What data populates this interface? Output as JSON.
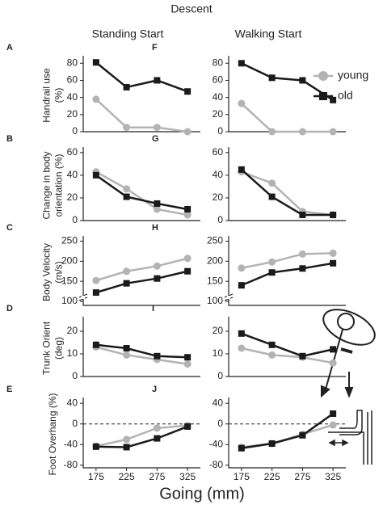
{
  "title": "Descent",
  "x_label": "Going (mm)",
  "columns": [
    "Standing Start",
    "Walking Start"
  ],
  "chart_data": [
    {
      "type": "line",
      "panel": "A",
      "ylabel": [
        "Handrail use",
        "(%)"
      ],
      "x": [
        175,
        225,
        275,
        325
      ],
      "xlim": [
        154,
        346
      ],
      "ylim": [
        0,
        85
      ],
      "yticks": [
        0,
        20,
        40,
        60,
        80
      ],
      "series": [
        {
          "color": "#b3b3b3",
          "marker": "circle",
          "values": [
            38,
            5,
            5,
            0
          ]
        },
        {
          "color": "#1a1a1a",
          "marker": "square",
          "values": [
            81,
            52,
            60,
            47
          ]
        }
      ]
    },
    {
      "type": "line",
      "panel": "B",
      "ylabel": [
        "Change in body",
        "orientation (%)"
      ],
      "x": [
        175,
        225,
        275,
        325
      ],
      "xlim": [
        154,
        346
      ],
      "ylim": [
        0,
        62
      ],
      "yticks": [
        0,
        20,
        40,
        60
      ],
      "series": [
        {
          "color": "#b3b3b3",
          "marker": "circle",
          "values": [
            43,
            28,
            10,
            5
          ]
        },
        {
          "color": "#1a1a1a",
          "marker": "square",
          "values": [
            40,
            21,
            15,
            10
          ]
        }
      ]
    },
    {
      "type": "line",
      "panel": "C",
      "ylabel": [
        "Body Velocity",
        "(m/s)"
      ],
      "x": [
        175,
        225,
        275,
        325
      ],
      "xlim": [
        154,
        346
      ],
      "ylim": [
        90,
        255
      ],
      "yticks": [
        100,
        150,
        200,
        250
      ],
      "axis_break": true,
      "series": [
        {
          "color": "#b3b3b3",
          "marker": "circle",
          "values": [
            152,
            175,
            188,
            207
          ]
        },
        {
          "color": "#1a1a1a",
          "marker": "square",
          "values": [
            122,
            145,
            157,
            175
          ]
        }
      ]
    },
    {
      "type": "line",
      "panel": "D",
      "ylabel": [
        "Trunk Orient",
        "(deg)"
      ],
      "x": [
        175,
        225,
        275,
        325
      ],
      "xlim": [
        154,
        346
      ],
      "ylim": [
        0,
        25
      ],
      "yticks": [
        0,
        10,
        20
      ],
      "series": [
        {
          "color": "#b3b3b3",
          "marker": "circle",
          "values": [
            13,
            9.5,
            7.5,
            5.5
          ]
        },
        {
          "color": "#1a1a1a",
          "marker": "square",
          "values": [
            14,
            12.5,
            9,
            8.5
          ]
        }
      ]
    },
    {
      "type": "line",
      "panel": "E",
      "ylabel": [
        "Foot Overhang (%)"
      ],
      "x": [
        175,
        225,
        275,
        325
      ],
      "xlim": [
        154,
        346
      ],
      "ylim": [
        -85,
        45
      ],
      "yticks": [
        -80,
        -40,
        0,
        40
      ],
      "xticks": [
        175,
        225,
        275,
        325
      ],
      "zero_line": true,
      "series": [
        {
          "color": "#b3b3b3",
          "marker": "circle",
          "values": [
            -43,
            -30,
            -8,
            -3
          ]
        },
        {
          "color": "#1a1a1a",
          "marker": "square",
          "values": [
            -44,
            -45,
            -28,
            -5
          ]
        }
      ]
    },
    {
      "type": "line",
      "panel": "F",
      "x": [
        175,
        225,
        275,
        325
      ],
      "xlim": [
        154,
        346
      ],
      "ylim": [
        0,
        85
      ],
      "yticks": [
        0,
        20,
        40,
        60,
        80
      ],
      "legend": "right",
      "series": [
        {
          "name": "young",
          "color": "#b3b3b3",
          "marker": "circle",
          "values": [
            33,
            0,
            0,
            0
          ]
        },
        {
          "name": "old",
          "color": "#1a1a1a",
          "marker": "square",
          "values": [
            80,
            63,
            60,
            37
          ]
        }
      ]
    },
    {
      "type": "line",
      "panel": "G",
      "x": [
        175,
        225,
        275,
        325
      ],
      "xlim": [
        154,
        346
      ],
      "ylim": [
        0,
        62
      ],
      "yticks": [
        0,
        20,
        40,
        60
      ],
      "series": [
        {
          "color": "#b3b3b3",
          "marker": "circle",
          "values": [
            43,
            33,
            8,
            5
          ]
        },
        {
          "color": "#1a1a1a",
          "marker": "square",
          "values": [
            45,
            21,
            5,
            5
          ]
        }
      ]
    },
    {
      "type": "line",
      "panel": "H",
      "x": [
        175,
        225,
        275,
        325
      ],
      "xlim": [
        154,
        346
      ],
      "ylim": [
        90,
        255
      ],
      "yticks": [
        100,
        150,
        200,
        250
      ],
      "axis_break": true,
      "series": [
        {
          "color": "#b3b3b3",
          "marker": "circle",
          "values": [
            183,
            198,
            218,
            220
          ]
        },
        {
          "color": "#1a1a1a",
          "marker": "square",
          "values": [
            140,
            172,
            182,
            195
          ]
        }
      ]
    },
    {
      "type": "line",
      "panel": "I",
      "x": [
        175,
        225,
        275,
        325
      ],
      "xlim": [
        154,
        346
      ],
      "ylim": [
        0,
        25
      ],
      "yticks": [
        0,
        10,
        20
      ],
      "series": [
        {
          "color": "#b3b3b3",
          "marker": "circle",
          "values": [
            12.5,
            9.5,
            8.5,
            6
          ]
        },
        {
          "color": "#1a1a1a",
          "marker": "square",
          "values": [
            19,
            14,
            9,
            12
          ]
        }
      ]
    },
    {
      "type": "line",
      "panel": "J",
      "x": [
        175,
        225,
        275,
        325
      ],
      "xlim": [
        154,
        346
      ],
      "ylim": [
        -85,
        45
      ],
      "yticks": [
        -80,
        -40,
        0,
        40
      ],
      "xticks": [
        175,
        225,
        275,
        325
      ],
      "zero_line": true,
      "series": [
        {
          "color": "#b3b3b3",
          "marker": "circle",
          "values": [
            -45,
            -38,
            -20,
            -2
          ]
        },
        {
          "color": "#1a1a1a",
          "marker": "square",
          "values": [
            -47,
            -38,
            -22,
            20
          ]
        }
      ]
    }
  ]
}
